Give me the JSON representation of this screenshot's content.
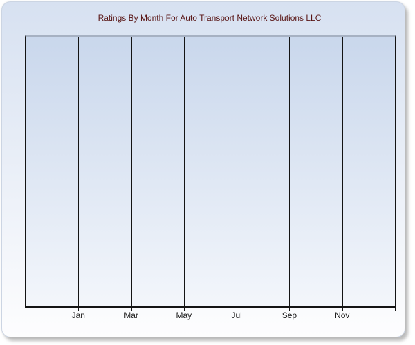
{
  "colors": {
    "title_color": "#581414",
    "panel_border": "#ccd5e3",
    "panel_bg_top": "#d7e1f1",
    "panel_bg_bottom": "#fdfdfe",
    "plot_bg_top": "#c9d7ec",
    "plot_bg_bottom": "#f3f6fb",
    "plot_top_border": "#a6b1c2",
    "axis_color": "#141414",
    "gridline_color": "#141414",
    "tick_label_color": "#1a1a1a",
    "shadow_color": "#919191"
  },
  "chart_data": {
    "type": "line",
    "title": "Ratings By Month For Auto Transport Network Solutions LLC",
    "x_tick_labels": [
      "Jan",
      "Mar",
      "May",
      "Jul",
      "Sep",
      "Nov"
    ],
    "series": [],
    "xlabel": "",
    "ylabel": "",
    "y_tick_labels": [],
    "grid": {
      "vertical": true,
      "horizontal": false,
      "columns": 7
    },
    "legend": "none",
    "notes": "Plot area is empty: vertical month gridlines only, no plotted data points and no y-axis labels."
  }
}
